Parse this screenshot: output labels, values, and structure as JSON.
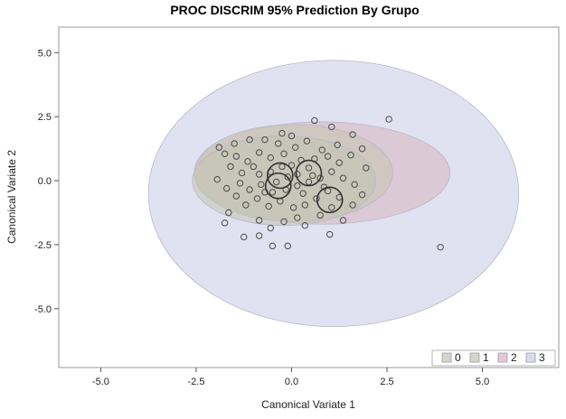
{
  "chart_data": {
    "type": "scatter",
    "title": "PROC DISCRIM 95% Prediction By Grupo",
    "xlabel": "Canonical Variate 1",
    "ylabel": "Canonical Variate 2",
    "xlim": [
      -6.1,
      7.0
    ],
    "ylim": [
      -7.3,
      6.0
    ],
    "xticks": [
      -5.0,
      -2.5,
      0.0,
      2.5,
      5.0
    ],
    "yticks": [
      -5.0,
      -2.5,
      0.0,
      2.5,
      5.0
    ],
    "xtick_labels": [
      "-5.0",
      "-2.5",
      "0.0",
      "2.5",
      "5.0"
    ],
    "ytick_labels": [
      "-5.0",
      "-2.5",
      "0.0",
      "2.5",
      "5.0"
    ],
    "grid": false,
    "legend": {
      "placement": "bottom-right",
      "entries": [
        "0",
        "1",
        "2",
        "3"
      ]
    },
    "prediction_ellipses": [
      {
        "group": "3",
        "cx": 1.1,
        "cy": -0.5,
        "rx": 4.85,
        "ry": 5.2,
        "fill": "#c9cbe6"
      },
      {
        "group": "2",
        "cx": 0.8,
        "cy": 0.3,
        "rx": 3.35,
        "ry": 2.0,
        "fill": "#d9b4c0"
      },
      {
        "group": "1",
        "cx": 0.05,
        "cy": 0.3,
        "rx": 2.6,
        "ry": 1.9,
        "fill": "#c5c5ae"
      },
      {
        "group": "0",
        "cx": -0.2,
        "cy": 0.0,
        "rx": 2.4,
        "ry": 1.75,
        "fill": "#c2c4b2"
      }
    ],
    "group_means": [
      {
        "group": "0",
        "x": -0.3,
        "y": 0.2
      },
      {
        "group": "1",
        "x": -0.35,
        "y": -0.2
      },
      {
        "group": "2",
        "x": 0.45,
        "y": 0.3
      },
      {
        "group": "3",
        "x": 1.0,
        "y": -0.75
      }
    ],
    "points": [
      [
        2.55,
        2.4
      ],
      [
        3.9,
        -2.6
      ],
      [
        0.6,
        2.35
      ],
      [
        1.05,
        2.1
      ],
      [
        0.0,
        1.75
      ],
      [
        -0.25,
        1.85
      ],
      [
        -0.7,
        1.6
      ],
      [
        -1.1,
        1.6
      ],
      [
        -1.5,
        1.45
      ],
      [
        -1.9,
        1.3
      ],
      [
        -1.75,
        1.05
      ],
      [
        -1.45,
        0.95
      ],
      [
        -1.15,
        0.75
      ],
      [
        -0.85,
        1.1
      ],
      [
        -0.55,
        0.9
      ],
      [
        -0.35,
        1.45
      ],
      [
        0.1,
        1.3
      ],
      [
        0.4,
        1.55
      ],
      [
        0.8,
        1.2
      ],
      [
        1.2,
        1.4
      ],
      [
        1.6,
        1.8
      ],
      [
        1.85,
        1.25
      ],
      [
        1.55,
        1.0
      ],
      [
        1.25,
        0.7
      ],
      [
        0.95,
        0.95
      ],
      [
        0.6,
        0.85
      ],
      [
        0.25,
        0.8
      ],
      [
        0.0,
        0.6
      ],
      [
        -0.25,
        0.55
      ],
      [
        -0.55,
        0.35
      ],
      [
        -0.85,
        0.25
      ],
      [
        -1.3,
        0.3
      ],
      [
        -1.6,
        0.55
      ],
      [
        -1.95,
        0.05
      ],
      [
        -1.7,
        -0.3
      ],
      [
        -1.35,
        -0.1
      ],
      [
        -1.1,
        -0.35
      ],
      [
        -0.8,
        -0.15
      ],
      [
        -0.5,
        -0.45
      ],
      [
        -0.15,
        -0.35
      ],
      [
        0.15,
        -0.2
      ],
      [
        0.45,
        -0.05
      ],
      [
        0.75,
        0.1
      ],
      [
        1.05,
        0.35
      ],
      [
        1.35,
        0.1
      ],
      [
        1.65,
        -0.15
      ],
      [
        1.95,
        0.5
      ],
      [
        1.85,
        -0.55
      ],
      [
        1.6,
        -0.95
      ],
      [
        1.25,
        -0.65
      ],
      [
        0.95,
        -0.4
      ],
      [
        0.65,
        -0.7
      ],
      [
        0.35,
        -0.95
      ],
      [
        0.05,
        -1.05
      ],
      [
        -0.3,
        -0.8
      ],
      [
        -0.6,
        -1.0
      ],
      [
        -0.9,
        -0.7
      ],
      [
        -1.2,
        -0.95
      ],
      [
        -1.45,
        -0.6
      ],
      [
        -1.65,
        -1.25
      ],
      [
        -1.75,
        -1.65
      ],
      [
        -1.25,
        -2.2
      ],
      [
        -0.85,
        -1.55
      ],
      [
        -0.55,
        -1.85
      ],
      [
        -0.2,
        -1.6
      ],
      [
        0.15,
        -1.45
      ],
      [
        0.35,
        -1.75
      ],
      [
        0.75,
        -1.35
      ],
      [
        1.05,
        -1.05
      ],
      [
        1.35,
        -1.55
      ],
      [
        1.0,
        -2.1
      ],
      [
        -0.5,
        -2.55
      ],
      [
        -0.85,
        -2.15
      ],
      [
        -0.1,
        -2.55
      ],
      [
        0.45,
        0.5
      ],
      [
        0.15,
        0.25
      ],
      [
        -0.1,
        0.15
      ],
      [
        -0.4,
        -0.05
      ],
      [
        -0.7,
        -0.45
      ],
      [
        0.3,
        -0.5
      ],
      [
        0.55,
        0.2
      ],
      [
        0.85,
        -0.25
      ],
      [
        -0.2,
        1.05
      ],
      [
        -1.0,
        0.55
      ]
    ]
  }
}
